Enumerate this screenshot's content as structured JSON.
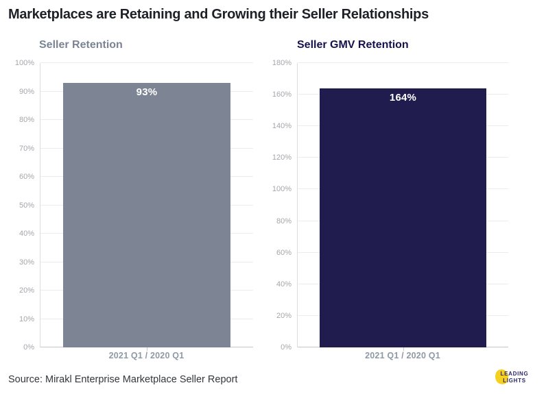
{
  "page": {
    "title": "Marketplaces are Retaining and Growing their Seller Relationships",
    "source": "Source: Mirakl Enterprise Marketplace Seller Report"
  },
  "logo": {
    "line1": "LEADING",
    "line2": "LIGHTS",
    "accent_color": "#f6d021",
    "text_color": "#2b2767"
  },
  "chart_data": [
    {
      "type": "bar",
      "title": "Seller Retention",
      "title_color": "#7b8493",
      "categories": [
        "2021 Q1 / 2020 Q1"
      ],
      "values": [
        93
      ],
      "labels": [
        "93%"
      ],
      "bar_color": "#7d8594",
      "value_label_color": "#ffffff",
      "ylim": [
        0,
        100
      ],
      "ytick_step": 10,
      "ytick_suffix": "%",
      "grid": true,
      "legend": "none"
    },
    {
      "type": "bar",
      "title": "Seller GMV Retention",
      "title_color": "#16124d",
      "categories": [
        "2021 Q1 / 2020 Q1"
      ],
      "values": [
        164
      ],
      "labels": [
        "164%"
      ],
      "bar_color": "#201c4e",
      "value_label_color": "#ffffff",
      "ylim": [
        0,
        180
      ],
      "ytick_step": 20,
      "ytick_suffix": "%",
      "grid": true,
      "legend": "none"
    }
  ]
}
